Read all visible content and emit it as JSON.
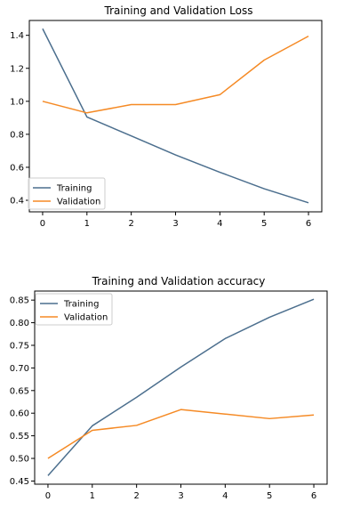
{
  "colors": {
    "training": "#4c6f8e",
    "validation": "#f58a25",
    "axis": "#000000",
    "legend_border": "#cccccc"
  },
  "chart_data": [
    {
      "type": "line",
      "title": "Training and Validation Loss",
      "x": [
        0,
        1,
        2,
        3,
        4,
        5,
        6
      ],
      "xticks": [
        "0",
        "1",
        "2",
        "3",
        "4",
        "5",
        "6"
      ],
      "xlim": [
        -0.3,
        6.3
      ],
      "ylim": [
        0.33,
        1.49
      ],
      "yticks": [
        "0.4",
        "0.6",
        "0.8",
        "1.0",
        "1.2",
        "1.4"
      ],
      "ytick_values": [
        0.4,
        0.6,
        0.8,
        1.0,
        1.2,
        1.4
      ],
      "grid": false,
      "legend_placement": "bottom-left",
      "series": [
        {
          "name": "Training",
          "color_key": "training",
          "values": [
            1.44,
            0.905,
            0.79,
            0.675,
            0.57,
            0.47,
            0.385
          ]
        },
        {
          "name": "Validation",
          "color_key": "validation",
          "values": [
            1.0,
            0.93,
            0.98,
            0.98,
            1.04,
            1.25,
            1.395
          ]
        }
      ]
    },
    {
      "type": "line",
      "title": "Training and Validation accuracy",
      "x": [
        0,
        1,
        2,
        3,
        4,
        5,
        6
      ],
      "xticks": [
        "0",
        "1",
        "2",
        "3",
        "4",
        "5",
        "6"
      ],
      "xlim": [
        -0.3,
        6.3
      ],
      "ylim": [
        0.443,
        0.87
      ],
      "yticks": [
        "0.45",
        "0.50",
        "0.55",
        "0.60",
        "0.65",
        "0.70",
        "0.75",
        "0.80",
        "0.85"
      ],
      "ytick_values": [
        0.45,
        0.5,
        0.55,
        0.6,
        0.65,
        0.7,
        0.75,
        0.8,
        0.85
      ],
      "grid": false,
      "legend_placement": "top-left",
      "series": [
        {
          "name": "Training",
          "color_key": "training",
          "values": [
            0.462,
            0.572,
            0.635,
            0.702,
            0.765,
            0.812,
            0.852
          ]
        },
        {
          "name": "Validation",
          "color_key": "validation",
          "values": [
            0.5,
            0.562,
            0.573,
            0.608,
            0.598,
            0.588,
            0.596
          ]
        }
      ]
    }
  ]
}
